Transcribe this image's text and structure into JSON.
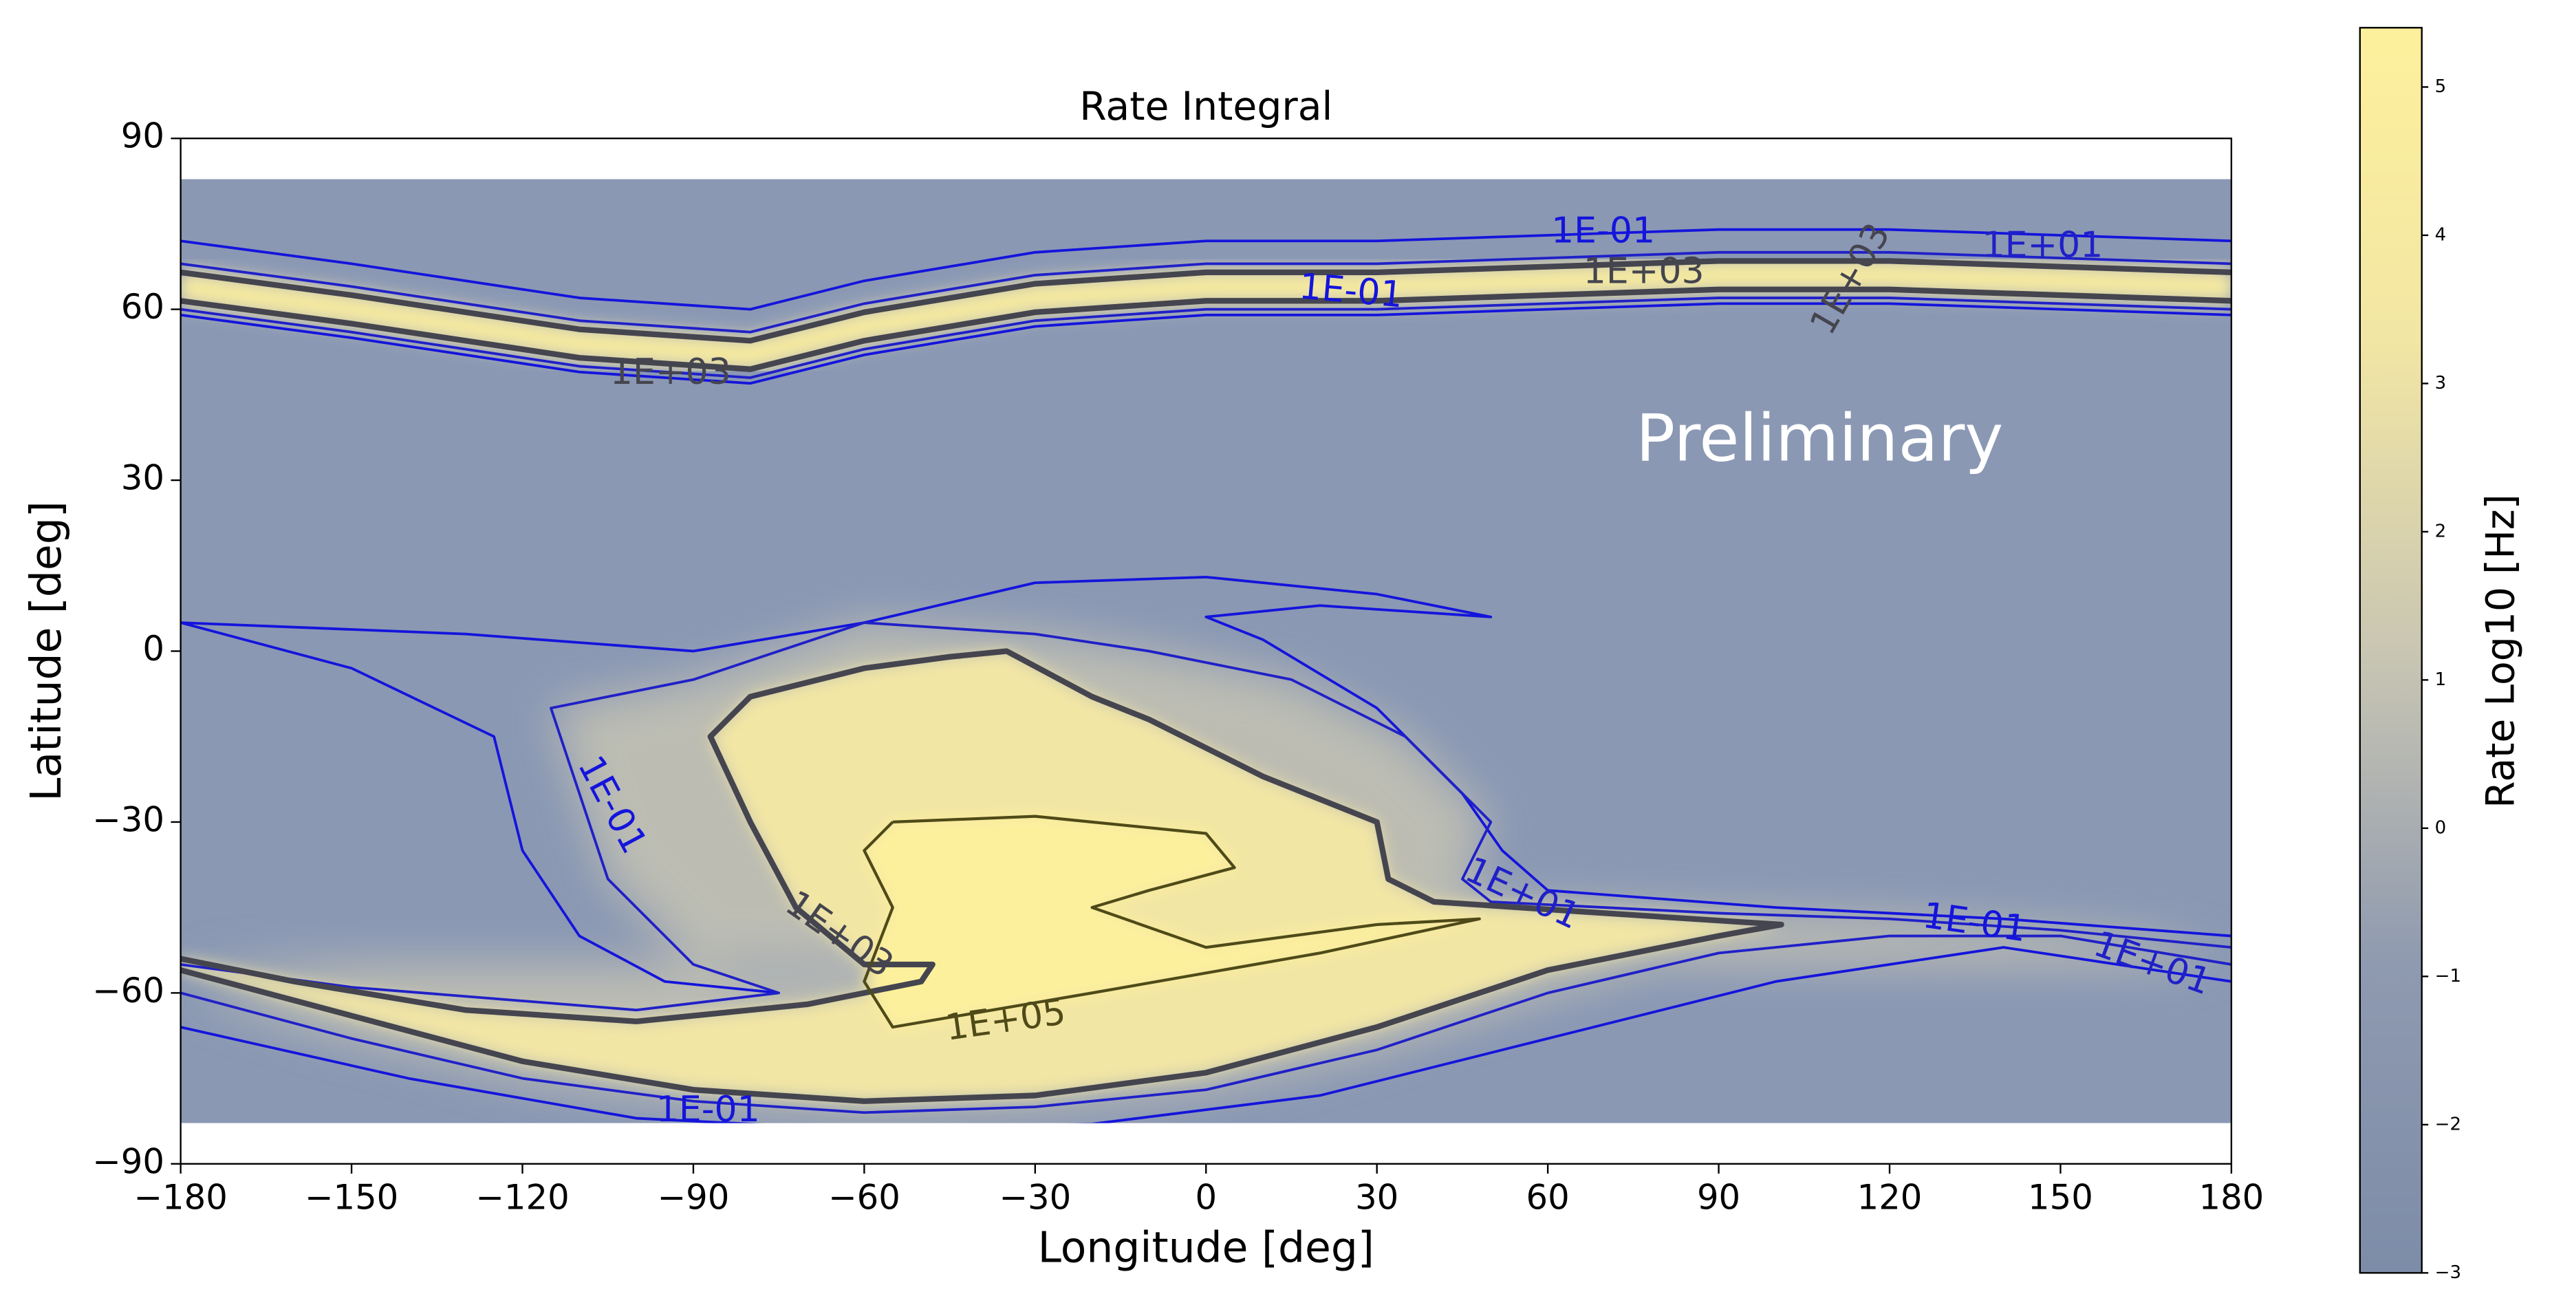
{
  "chart_data": {
    "type": "heatmap",
    "title": "Rate Integral",
    "xlabel": "Longitude [deg]",
    "ylabel": "Latitude [deg]",
    "xlim": [
      -180,
      180
    ],
    "ylim": [
      -90,
      90
    ],
    "xticks": [
      {
        "value": -180,
        "label": "−180"
      },
      {
        "value": -150,
        "label": "−150"
      },
      {
        "value": -120,
        "label": "−120"
      },
      {
        "value": -90,
        "label": "−90"
      },
      {
        "value": -60,
        "label": "−60"
      },
      {
        "value": -30,
        "label": "−30"
      },
      0,
      30,
      60,
      90,
      120,
      150,
      180
    ],
    "yticks": [
      {
        "value": -90,
        "label": "−90"
      },
      {
        "value": -60,
        "label": "−60"
      },
      {
        "value": -30,
        "label": "−30"
      },
      0,
      30,
      60,
      90
    ],
    "colorbar": {
      "label": "Rate Log10 [Hz]",
      "lim": [
        -3,
        5.4
      ],
      "ticks": [
        {
          "value": -3,
          "label": "−3"
        },
        {
          "value": -2,
          "label": "−2"
        },
        {
          "value": -1,
          "label": "−1"
        },
        0,
        1,
        2,
        3,
        4,
        5
      ],
      "colors": [
        "#7d8ca8",
        "#8f9ab0",
        "#c9c6b2",
        "#f2e6a4",
        "#fdf09c"
      ]
    },
    "contours": [
      {
        "label": "1E-01",
        "value": 0.1,
        "color": "#1414dc"
      },
      {
        "label": "1E+01",
        "value": 10,
        "color": "#2020c8"
      },
      {
        "label": "1E+03",
        "value": 1000,
        "color": "#45454f"
      },
      {
        "label": "1E+05",
        "value": 100000,
        "color": "#4f4a18"
      }
    ],
    "annotation": "Preliminary"
  }
}
